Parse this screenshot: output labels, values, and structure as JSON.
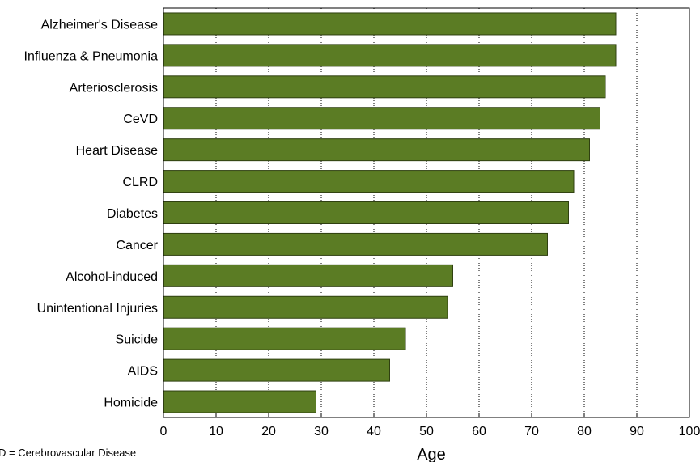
{
  "chart_data": {
    "type": "bar",
    "orientation": "horizontal",
    "categories": [
      "Alzheimer's Disease",
      "Influenza & Pneumonia",
      "Arteriosclerosis",
      "CeVD",
      "Heart Disease",
      "CLRD",
      "Diabetes",
      "Cancer",
      "Alcohol-induced",
      "Unintentional Injuries",
      "Suicide",
      "AIDS",
      "Homicide"
    ],
    "values": [
      86,
      86,
      84,
      83,
      81,
      78,
      77,
      73,
      55,
      54,
      46,
      43,
      29
    ],
    "xlabel": "Age",
    "xlim": [
      0,
      100
    ],
    "xticks": [
      0,
      10,
      20,
      30,
      40,
      50,
      60,
      70,
      80,
      90,
      100
    ],
    "grid": "vertical dotted",
    "bar_color": "#5b7c24",
    "bar_edge_color": "#2f4010",
    "footnote": "D = Cerebrovascular Disease"
  }
}
